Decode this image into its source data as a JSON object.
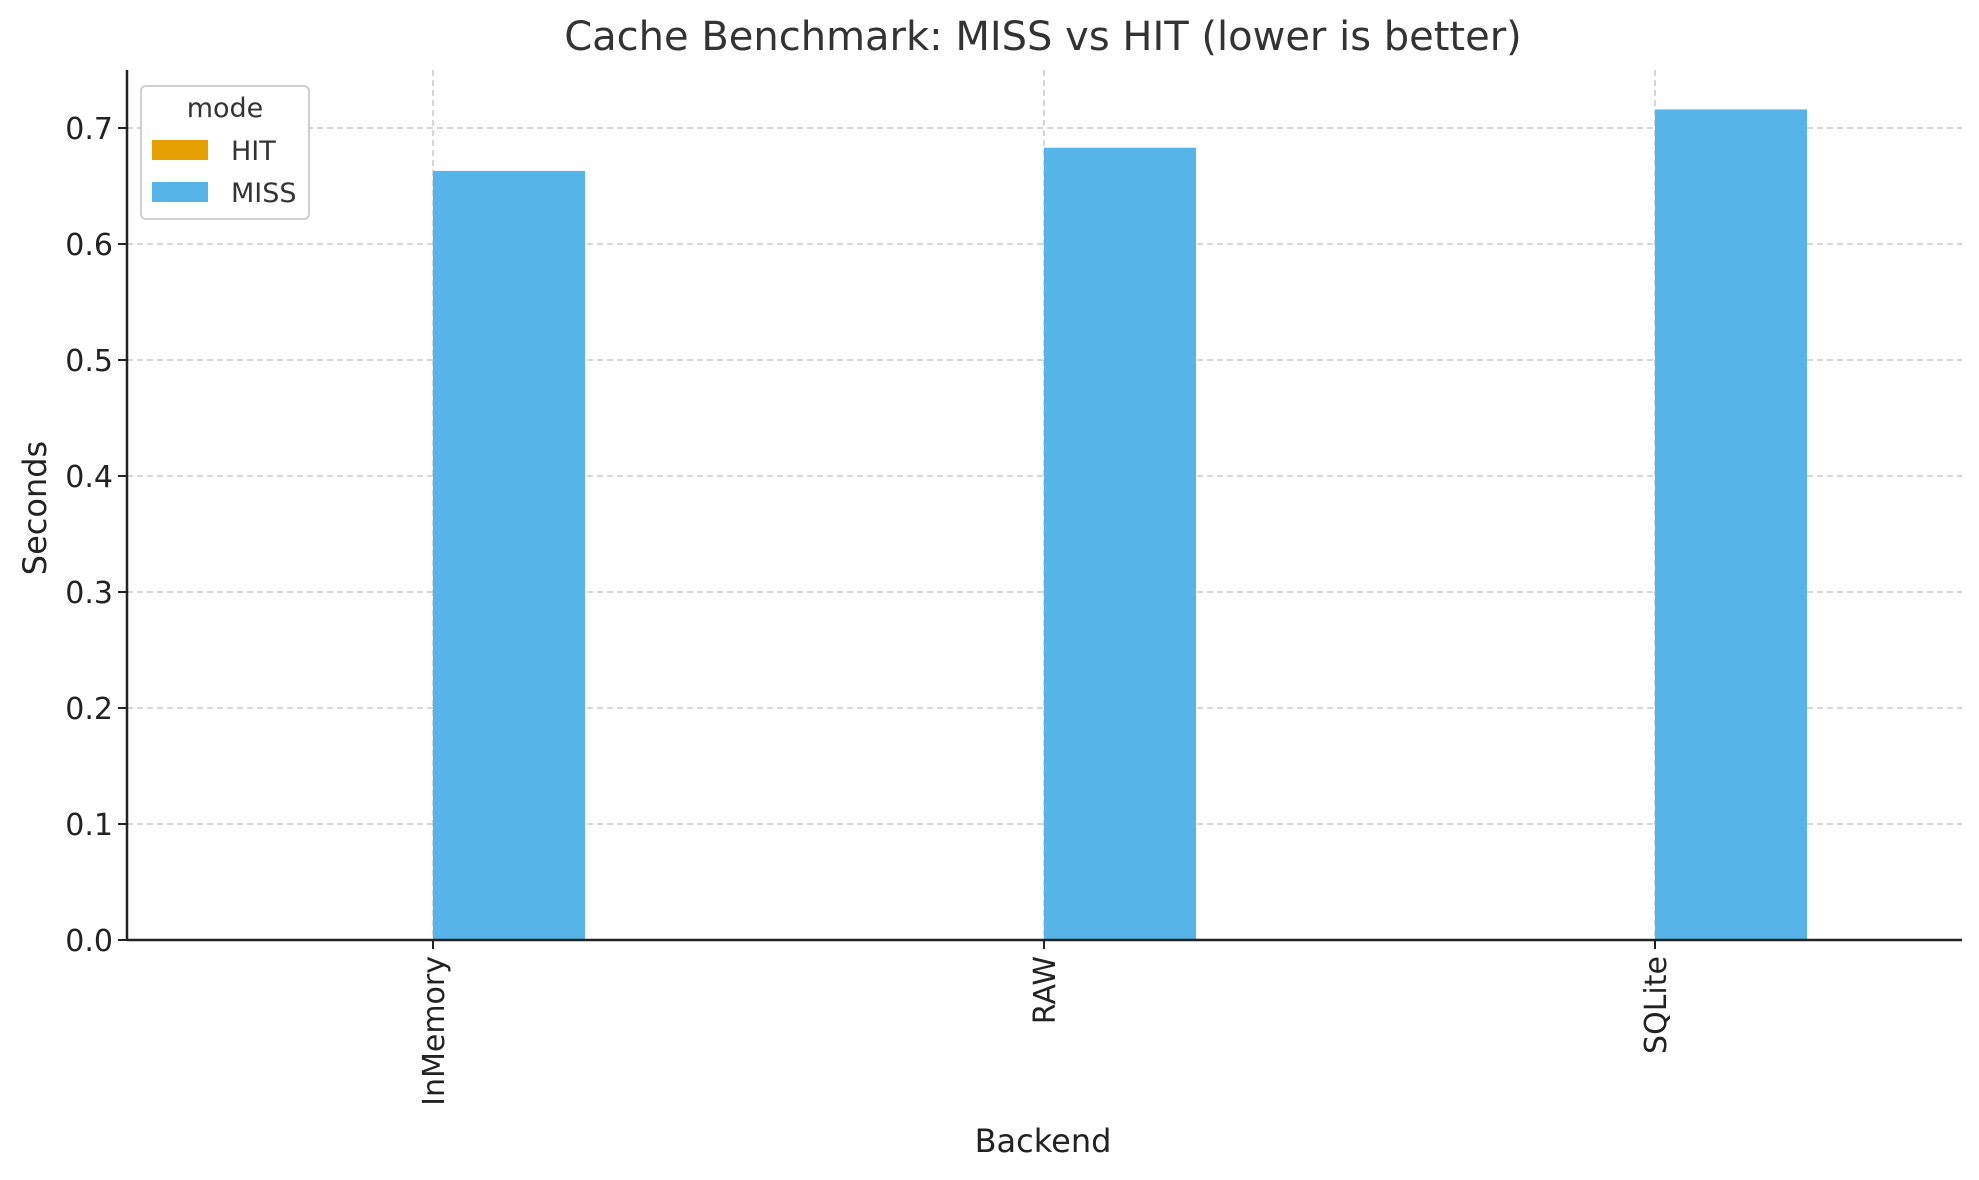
{
  "chart_data": {
    "type": "bar",
    "title": "Cache Benchmark: MISS vs HIT (lower is better)",
    "xlabel": "Backend",
    "ylabel": "Seconds",
    "categories": [
      "InMemory",
      "RAW",
      "SQLite"
    ],
    "series": [
      {
        "name": "HIT",
        "color": "#E69F00",
        "values": [
          0,
          0,
          0
        ]
      },
      {
        "name": "MISS",
        "color": "#56B4E9",
        "values": [
          0.663,
          0.683,
          0.716
        ]
      }
    ],
    "ylim": [
      0,
      0.75
    ],
    "yticks": [
      0.0,
      0.1,
      0.2,
      0.3,
      0.4,
      0.5,
      0.6,
      0.7
    ],
    "ytick_labels": [
      "0.0",
      "0.1",
      "0.2",
      "0.3",
      "0.4",
      "0.5",
      "0.6",
      "0.7"
    ],
    "grid": true,
    "legend": {
      "title": "mode",
      "placement": "top-left",
      "entries": [
        "HIT",
        "MISS"
      ]
    },
    "xtick_rotation": "vertical"
  }
}
